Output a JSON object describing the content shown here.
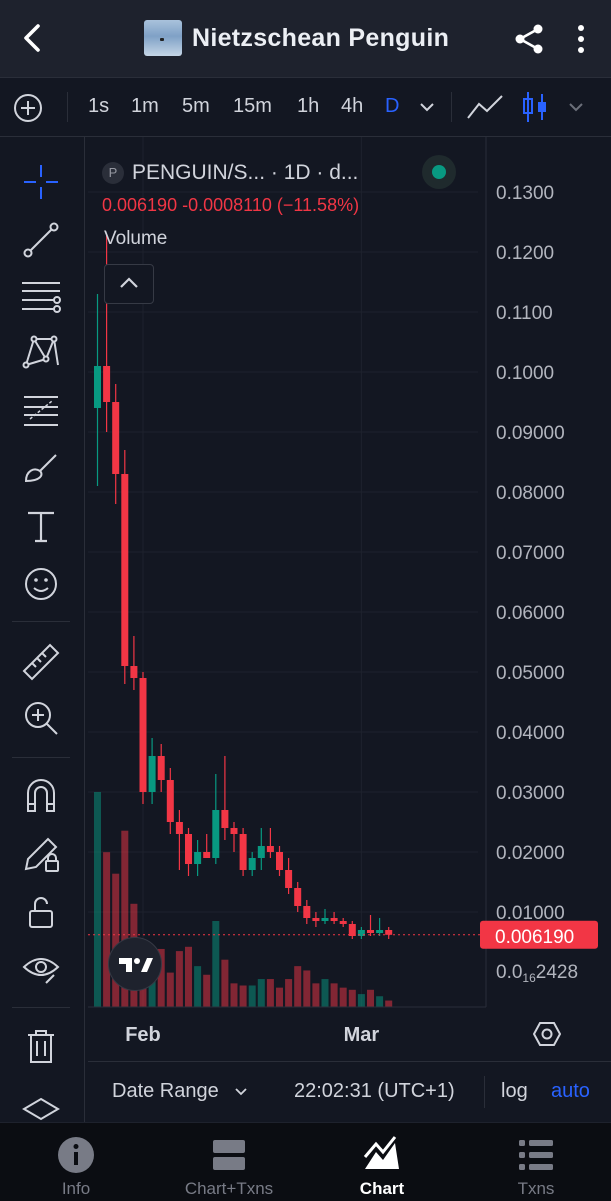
{
  "header": {
    "title": "Nietzschean Penguin"
  },
  "intervals": [
    "1s",
    "1m",
    "5m",
    "15m",
    "1h",
    "4h",
    "D"
  ],
  "active_interval": "D",
  "legend": {
    "avatar_letter": "P",
    "symbol": "PENGUIN/S...",
    "resolution": "· 1D · d...",
    "close": "0.006190",
    "change": "-0.0008110",
    "change_pct": "(−11.58%)",
    "volume_label": "Volume"
  },
  "bottom_controls": {
    "date_range": "Date Range",
    "clock": "22:02:31 (UTC+1)",
    "log": "log",
    "auto": "auto"
  },
  "nav": [
    {
      "label": "Info",
      "icon": "info-icon",
      "active": false
    },
    {
      "label": "Chart+Txns",
      "icon": "split-view-icon",
      "active": false
    },
    {
      "label": "Chart",
      "icon": "chart-icon",
      "active": true
    },
    {
      "label": "Txns",
      "icon": "list-icon",
      "active": false
    }
  ],
  "tools": [
    "crosshair-icon",
    "trendline-icon",
    "horizontal-lines-icon",
    "pattern-icon",
    "fib-icon",
    "brush-icon",
    "text-icon",
    "emoji-icon",
    "ruler-icon",
    "zoom-in-icon",
    "magnet-icon",
    "pencil-lock-icon",
    "lock-icon",
    "eye-icon",
    "trash-icon",
    "layers-icon"
  ],
  "colors": {
    "up": "#089981",
    "down": "#f23645",
    "accent": "#2962ff",
    "background": "#131722"
  },
  "chart_data": {
    "type": "candlestick",
    "symbol": "PENGUIN/S...",
    "timeframe": "1D",
    "y_axis_labels": [
      "0.1300",
      "0.1200",
      "0.1100",
      "0.1000",
      "0.09000",
      "0.08000",
      "0.07000",
      "0.06000",
      "0.05000",
      "0.04000",
      "0.03000",
      "0.02000",
      "0.01000"
    ],
    "ylim": [
      0.0,
      0.135
    ],
    "last_price_label": "0.006190",
    "bottom_label_prefix": "0.0",
    "bottom_label_sub": "16",
    "bottom_label_suffix": "2428",
    "x_axis_labels": [
      "Feb",
      "Mar"
    ],
    "x_label_index": [
      5,
      29
    ],
    "candles": [
      {
        "o": 0.094,
        "h": 0.113,
        "l": 0.081,
        "c": 0.101
      },
      {
        "o": 0.101,
        "h": 0.123,
        "l": 0.09,
        "c": 0.095
      },
      {
        "o": 0.095,
        "h": 0.098,
        "l": 0.078,
        "c": 0.083
      },
      {
        "o": 0.083,
        "h": 0.087,
        "l": 0.048,
        "c": 0.051
      },
      {
        "o": 0.051,
        "h": 0.056,
        "l": 0.047,
        "c": 0.049
      },
      {
        "o": 0.049,
        "h": 0.05,
        "l": 0.028,
        "c": 0.03
      },
      {
        "o": 0.03,
        "h": 0.039,
        "l": 0.028,
        "c": 0.036
      },
      {
        "o": 0.036,
        "h": 0.038,
        "l": 0.03,
        "c": 0.032
      },
      {
        "o": 0.032,
        "h": 0.034,
        "l": 0.023,
        "c": 0.025
      },
      {
        "o": 0.025,
        "h": 0.027,
        "l": 0.017,
        "c": 0.023
      },
      {
        "o": 0.023,
        "h": 0.024,
        "l": 0.016,
        "c": 0.018
      },
      {
        "o": 0.018,
        "h": 0.022,
        "l": 0.016,
        "c": 0.02
      },
      {
        "o": 0.02,
        "h": 0.023,
        "l": 0.019,
        "c": 0.019
      },
      {
        "o": 0.019,
        "h": 0.033,
        "l": 0.018,
        "c": 0.027
      },
      {
        "o": 0.027,
        "h": 0.036,
        "l": 0.022,
        "c": 0.024
      },
      {
        "o": 0.024,
        "h": 0.025,
        "l": 0.02,
        "c": 0.023
      },
      {
        "o": 0.023,
        "h": 0.024,
        "l": 0.016,
        "c": 0.017
      },
      {
        "o": 0.017,
        "h": 0.02,
        "l": 0.016,
        "c": 0.019
      },
      {
        "o": 0.019,
        "h": 0.024,
        "l": 0.017,
        "c": 0.021
      },
      {
        "o": 0.021,
        "h": 0.024,
        "l": 0.019,
        "c": 0.02
      },
      {
        "o": 0.02,
        "h": 0.021,
        "l": 0.016,
        "c": 0.017
      },
      {
        "o": 0.017,
        "h": 0.019,
        "l": 0.013,
        "c": 0.014
      },
      {
        "o": 0.014,
        "h": 0.015,
        "l": 0.01,
        "c": 0.011
      },
      {
        "o": 0.011,
        "h": 0.012,
        "l": 0.008,
        "c": 0.009
      },
      {
        "o": 0.009,
        "h": 0.01,
        "l": 0.0075,
        "c": 0.0085
      },
      {
        "o": 0.0085,
        "h": 0.0105,
        "l": 0.008,
        "c": 0.009
      },
      {
        "o": 0.009,
        "h": 0.01,
        "l": 0.008,
        "c": 0.0085
      },
      {
        "o": 0.0085,
        "h": 0.009,
        "l": 0.0075,
        "c": 0.008
      },
      {
        "o": 0.008,
        "h": 0.0085,
        "l": 0.0055,
        "c": 0.006
      },
      {
        "o": 0.006,
        "h": 0.0075,
        "l": 0.0055,
        "c": 0.007
      },
      {
        "o": 0.007,
        "h": 0.0095,
        "l": 0.006,
        "c": 0.0065
      },
      {
        "o": 0.0065,
        "h": 0.009,
        "l": 0.006,
        "c": 0.007
      },
      {
        "o": 0.007,
        "h": 0.0075,
        "l": 0.0055,
        "c": 0.0062
      }
    ],
    "volume_relative": [
      1.0,
      0.72,
      0.62,
      0.82,
      0.48,
      0.23,
      0.18,
      0.27,
      0.16,
      0.26,
      0.28,
      0.19,
      0.15,
      0.4,
      0.22,
      0.11,
      0.1,
      0.1,
      0.13,
      0.13,
      0.09,
      0.13,
      0.19,
      0.17,
      0.11,
      0.13,
      0.11,
      0.09,
      0.08,
      0.06,
      0.08,
      0.05,
      0.03
    ]
  }
}
